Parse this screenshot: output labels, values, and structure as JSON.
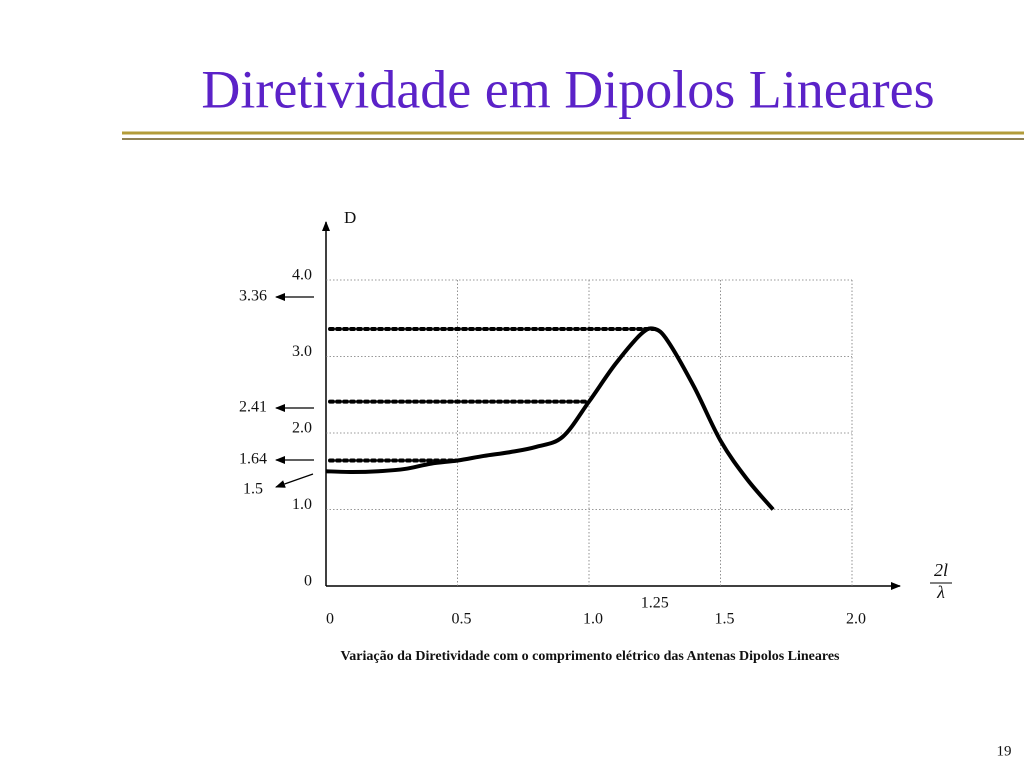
{
  "slide_title": "Diretividade em Dipolos Lineares",
  "page_number": "19",
  "chart_data": {
    "type": "line",
    "caption": "Variação da Diretividade com o comprimento elétrico das Antenas Dipolos Lineares",
    "y_label": "D",
    "x_label_numerator": "2l",
    "x_label_denominator": "λ",
    "x": [
      0,
      0.1,
      0.2,
      0.3,
      0.4,
      0.5,
      0.6,
      0.7,
      0.8,
      0.9,
      1.0,
      1.1,
      1.2,
      1.25,
      1.3,
      1.4,
      1.5,
      1.6,
      1.7
    ],
    "values": [
      1.5,
      1.49,
      1.5,
      1.53,
      1.6,
      1.64,
      1.7,
      1.75,
      1.82,
      1.95,
      2.41,
      2.9,
      3.3,
      3.36,
      3.2,
      2.6,
      1.9,
      1.4,
      1.0
    ],
    "color": "#000000",
    "xlim": [
      0,
      2.0
    ],
    "ylim": [
      0,
      4.0
    ],
    "xticks": [
      0,
      0.5,
      {
        "value": 1,
        "label": "1.0"
      },
      1.5,
      {
        "value": 2,
        "label": "2.0"
      }
    ],
    "yticks": [
      0,
      {
        "value": 1,
        "label": "1.0"
      },
      {
        "value": 2,
        "label": "2.0"
      },
      {
        "value": 3,
        "label": "3.0"
      },
      {
        "value": 4,
        "label": "4.0"
      }
    ],
    "x_marker": 1.25,
    "reference_lines": [
      {
        "value": 3.36,
        "x": 1.25
      },
      {
        "value": 2.41,
        "x": 1.0
      },
      {
        "value": 1.64,
        "x": 0.5
      },
      {
        "value": 1.5
      }
    ],
    "grid": true
  }
}
